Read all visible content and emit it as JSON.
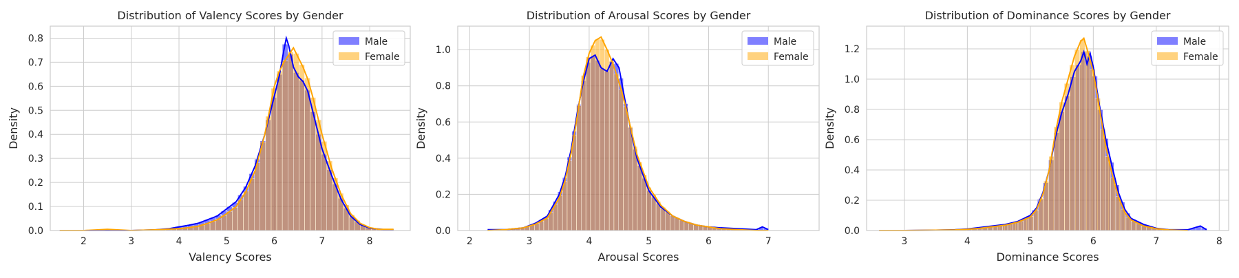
{
  "chart_data": [
    {
      "type": "histogram",
      "title": "Distribution of Valency Scores by Gender",
      "xlabel": "Valency Scores",
      "ylabel": "Density",
      "xlim": [
        1.3,
        8.85
      ],
      "ylim": [
        0,
        0.85
      ],
      "xticks": [
        2,
        3,
        4,
        5,
        6,
        7,
        8
      ],
      "yticks": [
        0.0,
        0.1,
        0.2,
        0.3,
        0.4,
        0.5,
        0.6,
        0.7,
        0.8
      ],
      "xtick_labels": [
        "2",
        "3",
        "4",
        "5",
        "6",
        "7",
        "8"
      ],
      "ytick_labels": [
        "0.0",
        "0.1",
        "0.2",
        "0.3",
        "0.4",
        "0.5",
        "0.6",
        "0.7",
        "0.8"
      ],
      "grid": true,
      "legend": "top-right",
      "series": [
        {
          "name": "Male",
          "color": "#0000ff",
          "x": [
            1.5,
            2.0,
            2.5,
            3.0,
            3.5,
            3.8,
            4.0,
            4.2,
            4.4,
            4.6,
            4.8,
            5.0,
            5.2,
            5.4,
            5.6,
            5.8,
            5.9,
            6.0,
            6.1,
            6.2,
            6.25,
            6.3,
            6.4,
            6.5,
            6.6,
            6.7,
            6.8,
            6.9,
            7.0,
            7.2,
            7.4,
            7.6,
            7.8,
            8.0,
            8.3,
            8.5
          ],
          "values": [
            0.0,
            0.0,
            0.0,
            0.0,
            0.003,
            0.008,
            0.015,
            0.022,
            0.03,
            0.045,
            0.06,
            0.09,
            0.12,
            0.18,
            0.27,
            0.4,
            0.48,
            0.56,
            0.64,
            0.75,
            0.8,
            0.77,
            0.68,
            0.64,
            0.62,
            0.58,
            0.5,
            0.42,
            0.34,
            0.23,
            0.13,
            0.06,
            0.025,
            0.01,
            0.004,
            0.002
          ]
        },
        {
          "name": "Female",
          "color": "#ffa500",
          "x": [
            1.5,
            2.0,
            2.5,
            3.0,
            3.5,
            4.0,
            4.2,
            4.4,
            4.6,
            4.8,
            5.0,
            5.2,
            5.4,
            5.6,
            5.8,
            5.9,
            6.0,
            6.1,
            6.2,
            6.3,
            6.4,
            6.5,
            6.6,
            6.7,
            6.8,
            6.9,
            7.0,
            7.2,
            7.4,
            7.6,
            7.8,
            8.0,
            8.2,
            8.5
          ],
          "values": [
            0.0,
            0.0,
            0.005,
            0.0,
            0.003,
            0.008,
            0.012,
            0.018,
            0.03,
            0.045,
            0.07,
            0.1,
            0.16,
            0.25,
            0.4,
            0.5,
            0.6,
            0.66,
            0.7,
            0.73,
            0.76,
            0.72,
            0.68,
            0.63,
            0.56,
            0.48,
            0.4,
            0.26,
            0.15,
            0.07,
            0.03,
            0.012,
            0.005,
            0.005
          ]
        }
      ]
    },
    {
      "type": "histogram",
      "title": "Distribution of Arousal Scores by Gender",
      "xlabel": "Arousal Scores",
      "ylabel": "Density",
      "xlim": [
        1.8,
        7.85
      ],
      "ylim": [
        0,
        1.13
      ],
      "xticks": [
        2,
        3,
        4,
        5,
        6,
        7
      ],
      "yticks": [
        0.0,
        0.2,
        0.4,
        0.6,
        0.8,
        1.0
      ],
      "xtick_labels": [
        "2",
        "3",
        "4",
        "5",
        "6",
        "7"
      ],
      "ytick_labels": [
        "0.0",
        "0.2",
        "0.4",
        "0.6",
        "0.8",
        "1.0"
      ],
      "grid": true,
      "legend": "top-right",
      "series": [
        {
          "name": "Male",
          "color": "#0000ff",
          "x": [
            2.3,
            2.6,
            2.9,
            3.1,
            3.3,
            3.5,
            3.6,
            3.7,
            3.8,
            3.9,
            4.0,
            4.1,
            4.2,
            4.3,
            4.4,
            4.5,
            4.6,
            4.7,
            4.8,
            5.0,
            5.2,
            5.4,
            5.6,
            5.8,
            6.0,
            6.2,
            6.5,
            6.8,
            6.9,
            7.0
          ],
          "values": [
            0.005,
            0.005,
            0.015,
            0.04,
            0.08,
            0.2,
            0.3,
            0.45,
            0.65,
            0.82,
            0.95,
            0.97,
            0.9,
            0.88,
            0.95,
            0.9,
            0.72,
            0.55,
            0.4,
            0.22,
            0.13,
            0.08,
            0.05,
            0.03,
            0.02,
            0.015,
            0.01,
            0.005,
            0.02,
            0.005
          ]
        },
        {
          "name": "Female",
          "color": "#ffa500",
          "x": [
            2.3,
            2.6,
            2.9,
            3.1,
            3.3,
            3.5,
            3.6,
            3.7,
            3.8,
            3.9,
            4.0,
            4.1,
            4.2,
            4.3,
            4.4,
            4.5,
            4.6,
            4.7,
            4.8,
            5.0,
            5.2,
            5.4,
            5.6,
            5.8,
            6.0,
            6.2,
            6.5,
            6.8,
            7.0
          ],
          "values": [
            0.0,
            0.005,
            0.015,
            0.035,
            0.07,
            0.18,
            0.28,
            0.43,
            0.63,
            0.85,
            0.98,
            1.05,
            1.07,
            1.0,
            0.92,
            0.82,
            0.7,
            0.56,
            0.42,
            0.24,
            0.14,
            0.08,
            0.05,
            0.03,
            0.02,
            0.01,
            0.005,
            0.0,
            0.0
          ]
        }
      ]
    },
    {
      "type": "histogram",
      "title": "Distribution of Dominance Scores by Gender",
      "xlabel": "Dominance Scores",
      "ylabel": "Density",
      "xlim": [
        2.4,
        8.15
      ],
      "ylim": [
        0,
        1.35
      ],
      "xticks": [
        3,
        4,
        5,
        6,
        7,
        8
      ],
      "yticks": [
        0.0,
        0.2,
        0.4,
        0.6,
        0.8,
        1.0,
        1.2
      ],
      "xtick_labels": [
        "3",
        "4",
        "5",
        "6",
        "7",
        "8"
      ],
      "ytick_labels": [
        "0.0",
        "0.2",
        "0.4",
        "0.6",
        "0.8",
        "1.0",
        "1.2"
      ],
      "grid": true,
      "legend": "top-right",
      "series": [
        {
          "name": "Male",
          "color": "#0000ff",
          "x": [
            2.6,
            3.0,
            3.5,
            3.8,
            4.0,
            4.2,
            4.4,
            4.6,
            4.8,
            5.0,
            5.1,
            5.2,
            5.3,
            5.4,
            5.5,
            5.6,
            5.7,
            5.8,
            5.85,
            5.9,
            5.95,
            6.0,
            6.1,
            6.2,
            6.3,
            6.4,
            6.5,
            6.6,
            6.8,
            7.0,
            7.2,
            7.5,
            7.7,
            7.8
          ],
          "values": [
            0.0,
            0.0,
            0.002,
            0.005,
            0.01,
            0.02,
            0.03,
            0.04,
            0.06,
            0.1,
            0.15,
            0.25,
            0.4,
            0.62,
            0.78,
            0.9,
            1.05,
            1.12,
            1.18,
            1.1,
            1.17,
            1.08,
            0.82,
            0.6,
            0.42,
            0.25,
            0.14,
            0.08,
            0.04,
            0.015,
            0.005,
            0.005,
            0.03,
            0.005
          ]
        },
        {
          "name": "Female",
          "color": "#ffa500",
          "x": [
            2.6,
            3.0,
            3.5,
            3.8,
            4.0,
            4.2,
            4.4,
            4.6,
            4.8,
            5.0,
            5.1,
            5.2,
            5.3,
            5.4,
            5.5,
            5.6,
            5.7,
            5.8,
            5.85,
            5.9,
            6.0,
            6.1,
            6.2,
            6.3,
            6.4,
            6.5,
            6.6,
            6.8,
            7.0,
            7.2,
            7.5
          ],
          "values": [
            0.0,
            0.0,
            0.002,
            0.004,
            0.008,
            0.015,
            0.025,
            0.035,
            0.055,
            0.09,
            0.14,
            0.24,
            0.4,
            0.65,
            0.85,
            1.0,
            1.15,
            1.25,
            1.27,
            1.2,
            1.05,
            0.8,
            0.55,
            0.37,
            0.22,
            0.12,
            0.07,
            0.03,
            0.012,
            0.004,
            0.0
          ]
        }
      ]
    }
  ]
}
